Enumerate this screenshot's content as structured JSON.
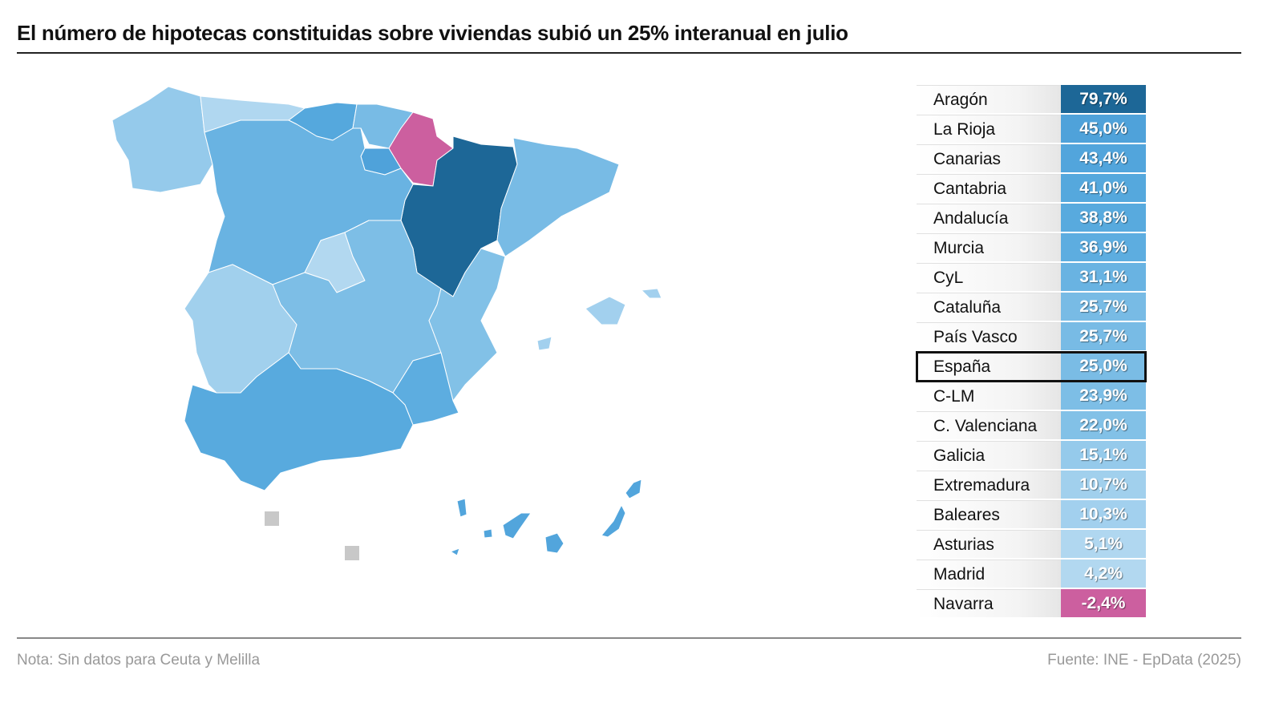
{
  "title": "El número de hipotecas constituidas sobre viviendas subió un 25% interanual en julio",
  "note": "Nota: Sin datos para Ceuta y Melilla",
  "source": "Fuente: INE - EpData (2025)",
  "colors": {
    "highlight_fill": "#cc5f9f",
    "max_fill": "#1d6797",
    "no_data": "#c8c8c8"
  },
  "chart_data": {
    "type": "choropleth",
    "unit": "%",
    "regions": [
      {
        "name": "Aragón",
        "label": "79,7%",
        "value": 79.7,
        "color": "#1d6797"
      },
      {
        "name": "La Rioja",
        "label": "45,0%",
        "value": 45.0,
        "color": "#4fa2da"
      },
      {
        "name": "Canarias",
        "label": "43,4%",
        "value": 43.4,
        "color": "#52a5dc"
      },
      {
        "name": "Cantabria",
        "label": "41,0%",
        "value": 41.0,
        "color": "#55a8dd"
      },
      {
        "name": "Andalucía",
        "label": "38,8%",
        "value": 38.8,
        "color": "#58aade"
      },
      {
        "name": "Murcia",
        "label": "36,9%",
        "value": 36.9,
        "color": "#5dade0"
      },
      {
        "name": "CyL",
        "label": "31,1%",
        "value": 31.1,
        "color": "#69b3e2"
      },
      {
        "name": "Cataluña",
        "label": "25,7%",
        "value": 25.7,
        "color": "#78bbe5"
      },
      {
        "name": "País Vasco",
        "label": "25,7%",
        "value": 25.7,
        "color": "#78bbe5"
      },
      {
        "name": "España",
        "label": "25,0%",
        "value": 25.0,
        "color": "#7abce5",
        "highlight": true
      },
      {
        "name": "C-LM",
        "label": "23,9%",
        "value": 23.9,
        "color": "#7dbee6"
      },
      {
        "name": "C. Valenciana",
        "label": "22,0%",
        "value": 22.0,
        "color": "#82c1e7"
      },
      {
        "name": "Galicia",
        "label": "15,1%",
        "value": 15.1,
        "color": "#95caeb"
      },
      {
        "name": "Extremadura",
        "label": "10,7%",
        "value": 10.7,
        "color": "#a1d0ed"
      },
      {
        "name": "Baleares",
        "label": "10,3%",
        "value": 10.3,
        "color": "#a2d0ee"
      },
      {
        "name": "Asturias",
        "label": "5,1%",
        "value": 5.1,
        "color": "#b0d7f0"
      },
      {
        "name": "Madrid",
        "label": "4,2%",
        "value": 4.2,
        "color": "#b2d8f0"
      },
      {
        "name": "Navarra",
        "label": "-2,4%",
        "value": -2.4,
        "color": "#cc5f9f"
      }
    ],
    "no_data": [
      "Ceuta",
      "Melilla"
    ]
  }
}
